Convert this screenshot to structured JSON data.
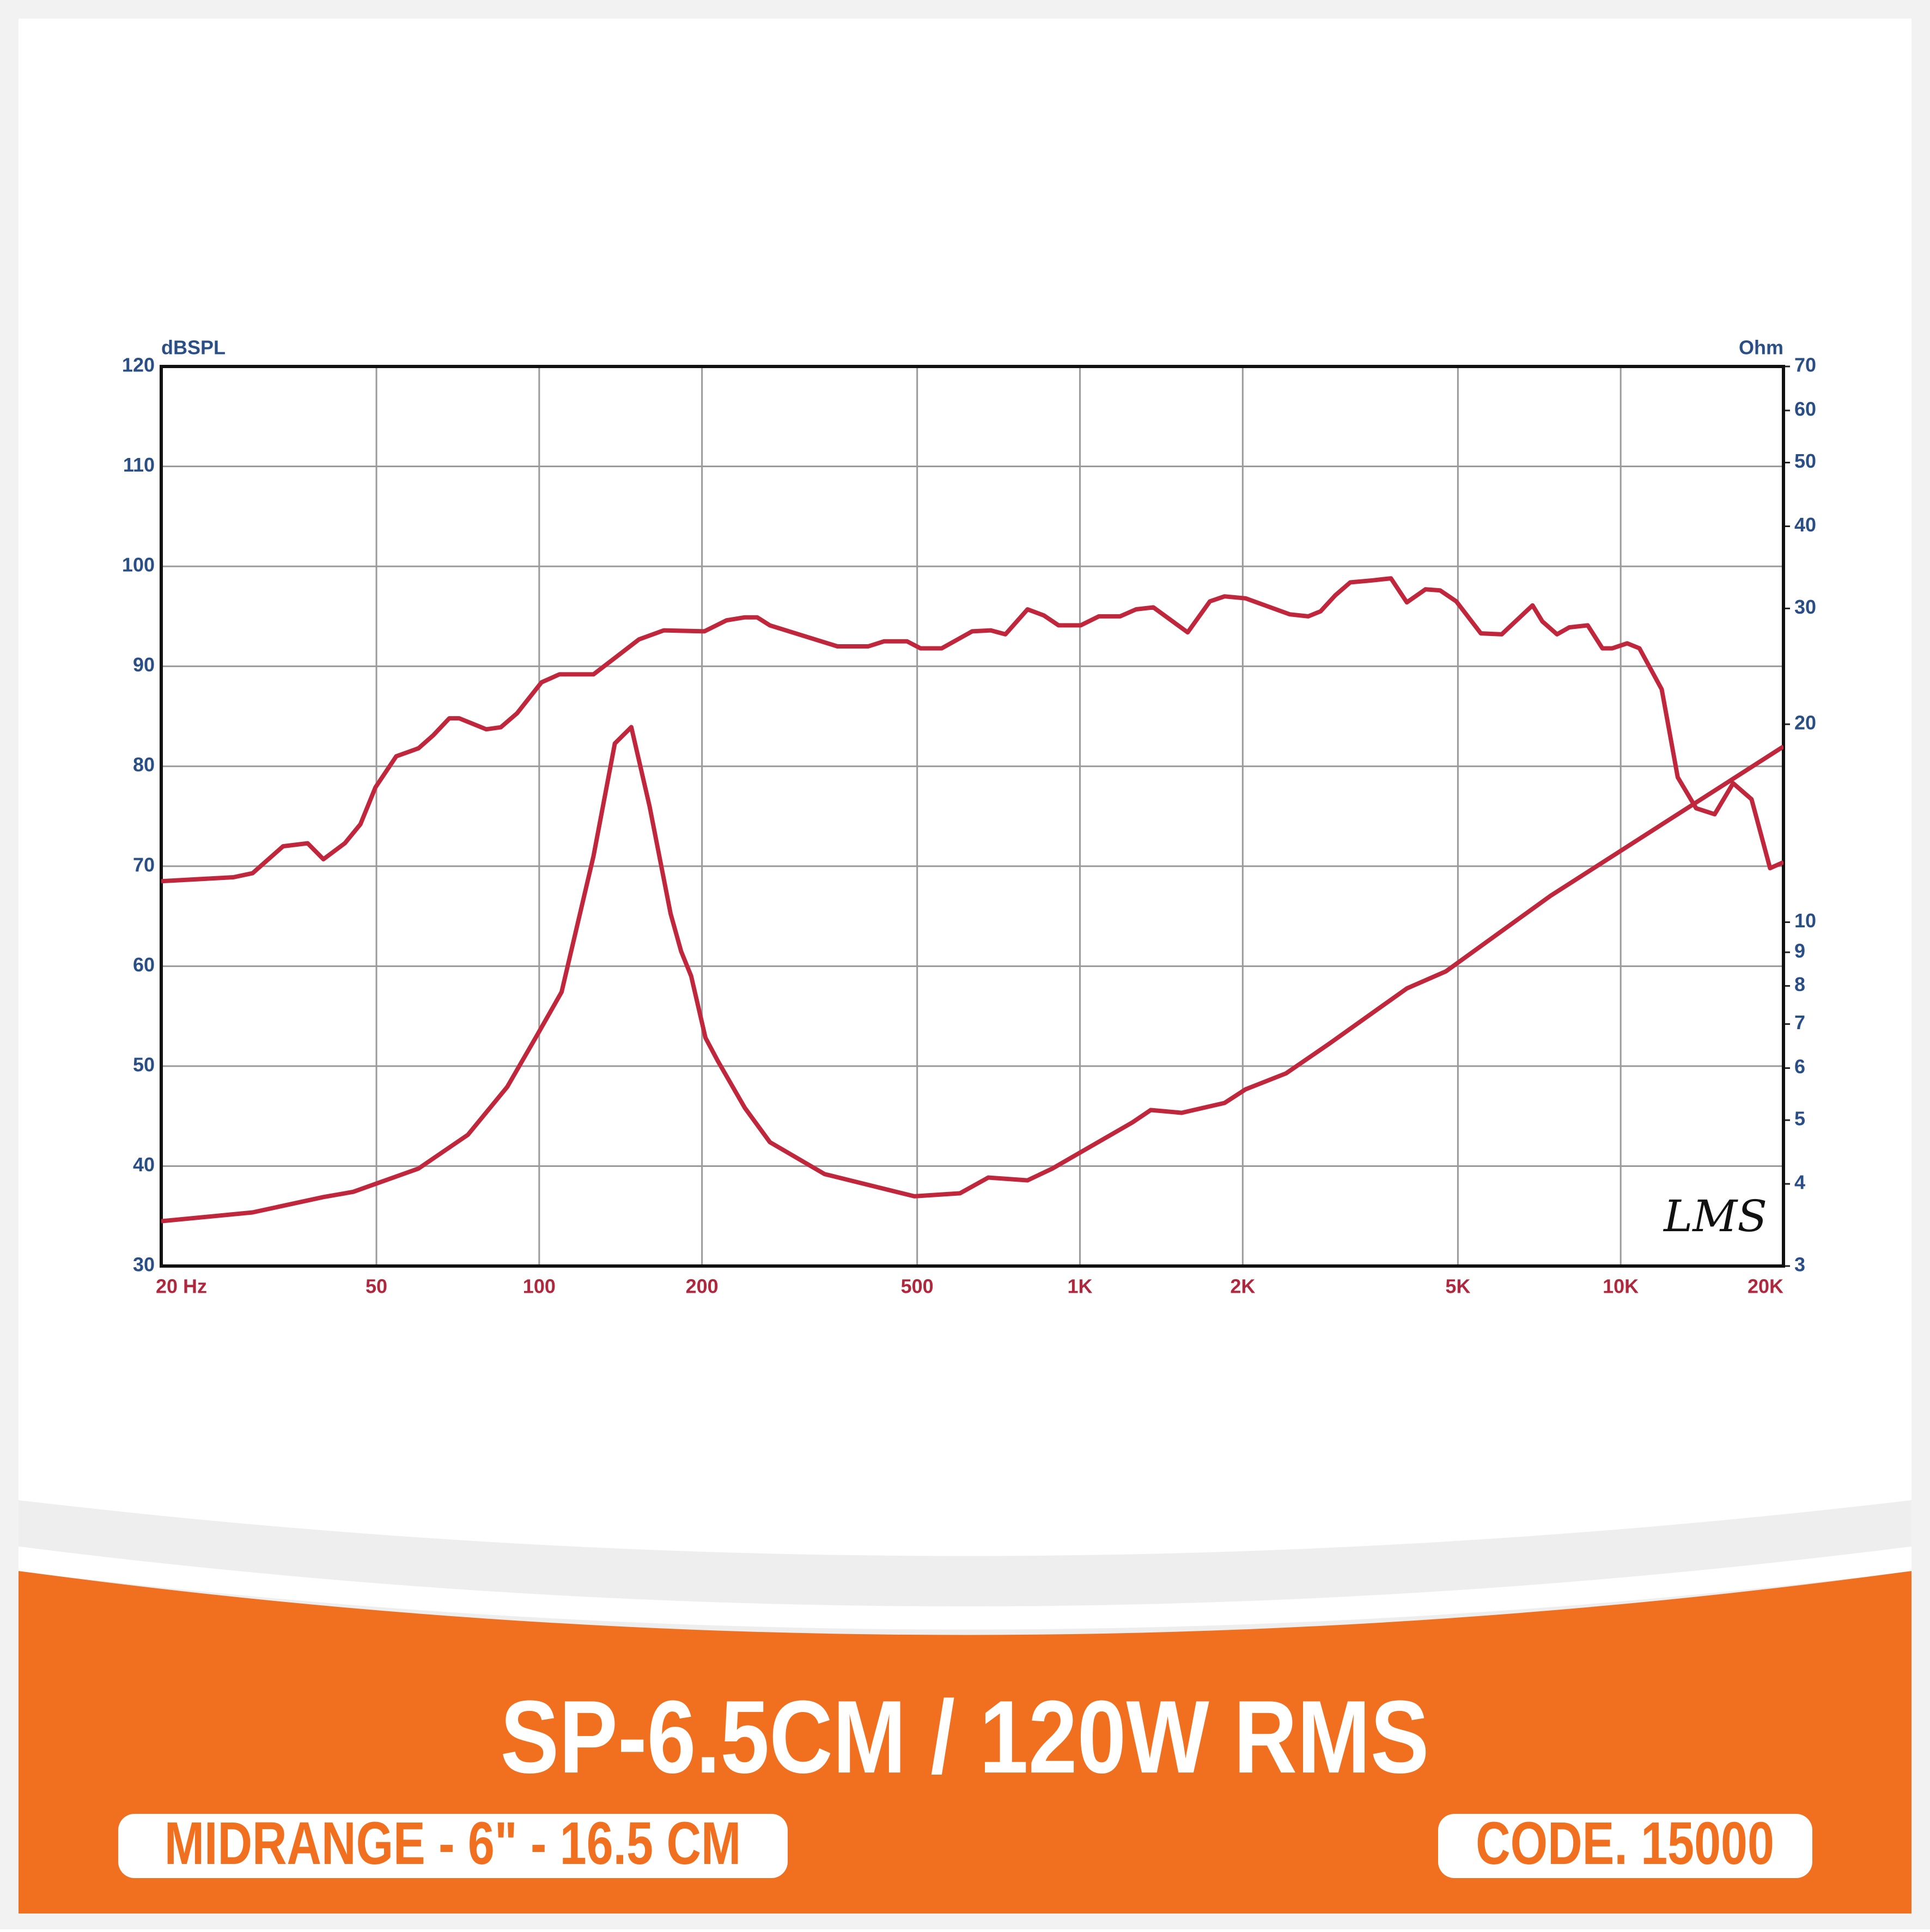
{
  "chart_data": {
    "type": "line",
    "title": "SP-6.5CM / 120W RMS",
    "subtitle": "MIDRANGE - 6\" - 16.5 CM",
    "code": "CODE. 15000",
    "logo": "LMS",
    "ylabel": "dBSPL",
    "y2label": "Ohm",
    "xscale": "log",
    "y2scale": "log",
    "grid": true,
    "xlim": [
      20,
      20000
    ],
    "xticks": [
      {
        "value": 20,
        "label": "20  Hz"
      },
      50,
      100,
      200,
      500,
      {
        "value": 1000,
        "label": "1K"
      },
      {
        "value": 2000,
        "label": "2K"
      },
      {
        "value": 5000,
        "label": "5K"
      },
      {
        "value": 10000,
        "label": "10K"
      },
      {
        "value": 20000,
        "label": "20K"
      }
    ],
    "ylim": [
      30,
      120
    ],
    "yticks": [
      30,
      40,
      50,
      60,
      70,
      80,
      90,
      100,
      110,
      120
    ],
    "y2lim": [
      3,
      70
    ],
    "y2ticks": [
      3,
      4,
      5,
      6,
      7,
      8,
      9,
      10,
      20,
      30,
      40,
      50,
      60,
      70
    ],
    "series": [
      {
        "color": "#c0263c",
        "x": [
          20,
          27.2,
          29.5,
          33.6,
          37.3,
          39.9,
          43.7,
          46.7,
          49.8,
          54.4,
          59.8,
          63.7,
          68.2,
          71.1,
          79.8,
          84.9,
          91,
          101,
          109,
          126,
          153,
          170,
          202,
          222,
          240,
          253,
          267,
          356,
          406,
          434,
          479,
          507,
          555,
          632,
          684,
          728,
          800,
          857,
          913,
          1003,
          1084,
          1186,
          1270,
          1367,
          1582,
          1739,
          1851,
          2024,
          2444,
          2643,
          2786,
          2966,
          3161,
          3476,
          3759,
          4023,
          4355,
          4634,
          4966,
          5512,
          6025,
          6871,
          7163,
          7626,
          8036,
          8690,
          9251,
          9650,
          10280,
          10830,
          11910,
          12750,
          13790,
          14920,
          16140,
          17460,
          18890,
          20000
        ],
        "values": [
          68.5,
          68.9,
          69.3,
          72.0,
          72.3,
          70.7,
          72.3,
          74.2,
          77.9,
          81.0,
          81.8,
          83.1,
          84.8,
          84.8,
          83.7,
          83.9,
          85.3,
          88.4,
          89.2,
          89.2,
          92.7,
          93.6,
          93.5,
          94.6,
          94.9,
          94.9,
          94.1,
          92.0,
          92.0,
          92.5,
          92.5,
          91.8,
          91.8,
          93.5,
          93.6,
          93.2,
          95.7,
          95.1,
          94.1,
          94.1,
          95.0,
          95.0,
          95.7,
          95.9,
          93.4,
          96.5,
          97.0,
          96.8,
          95.2,
          95.0,
          95.5,
          97.1,
          98.4,
          98.6,
          98.8,
          96.4,
          97.7,
          97.6,
          96.5,
          93.3,
          93.2,
          96.1,
          94.5,
          93.2,
          93.9,
          94.1,
          91.8,
          91.8,
          92.3,
          91.8,
          87.7,
          78.9,
          75.8,
          75.2,
          78.3,
          76.7,
          69.8,
          70.4
        ]
      },
      {
        "color": "#c0263c",
        "axis": "y2",
        "x": [
          20,
          29.5,
          39.9,
          45.3,
          59.8,
          73.8,
          87.3,
          99.4,
          110,
          126,
          138,
          148,
          160,
          175,
          183,
          191,
          203,
          214,
          240,
          267,
          337,
          494,
          600,
          677,
          800,
          889,
          1250,
          1352,
          1542,
          1851,
          2024,
          2405,
          2887,
          4023,
          4752,
          7420,
          20000
        ],
        "values": [
          3.51,
          3.62,
          3.82,
          3.89,
          4.22,
          4.75,
          5.62,
          6.76,
          7.83,
          12.6,
          18.7,
          19.8,
          15.0,
          10.3,
          9.03,
          8.28,
          6.67,
          6.15,
          5.22,
          4.63,
          4.14,
          3.83,
          3.87,
          4.09,
          4.05,
          4.22,
          4.96,
          5.18,
          5.13,
          5.31,
          5.57,
          5.89,
          6.53,
          7.93,
          8.42,
          10.97,
          18.5
        ]
      }
    ]
  }
}
